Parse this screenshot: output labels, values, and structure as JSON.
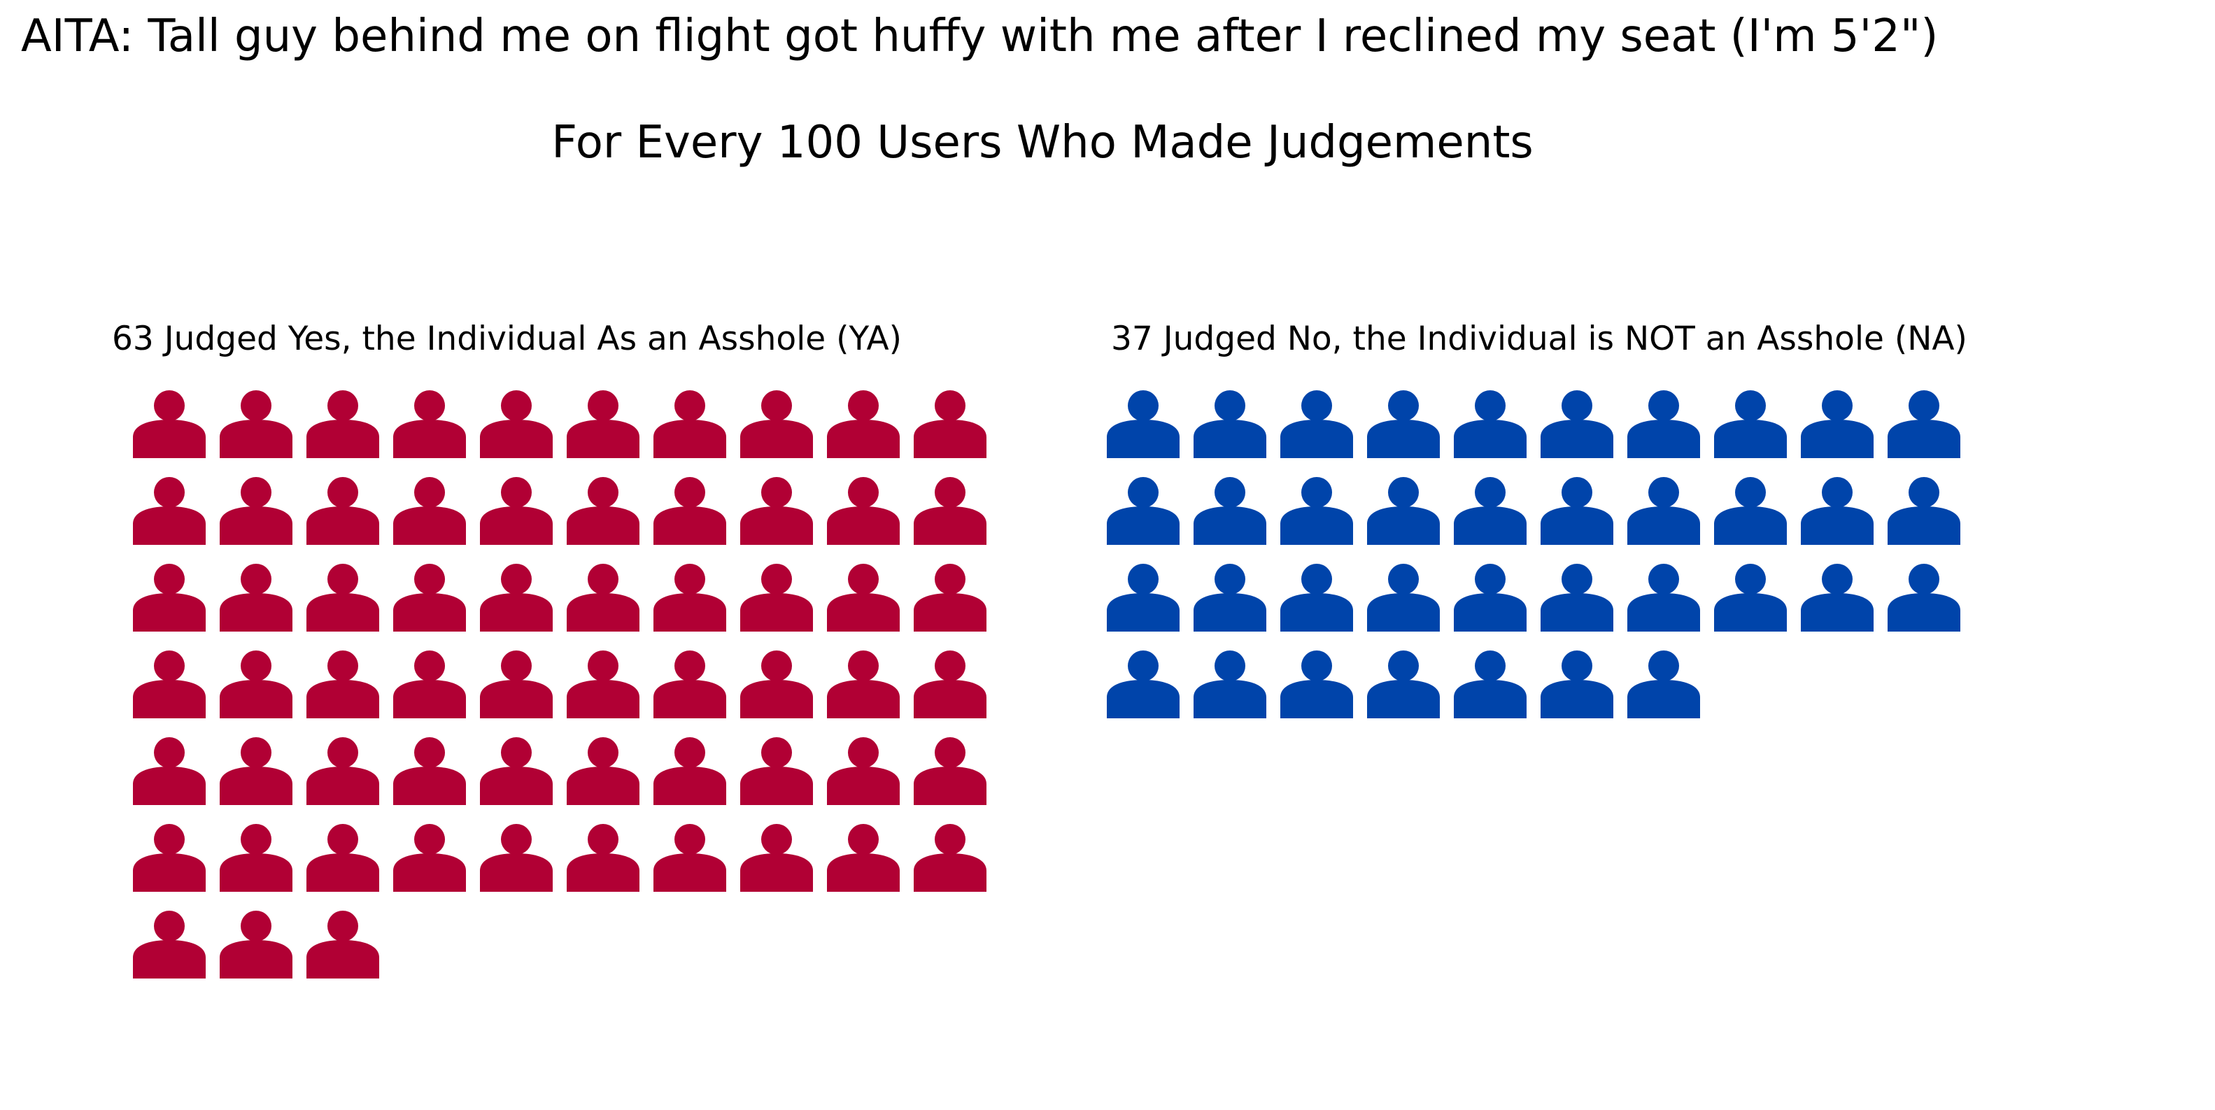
{
  "title": "AITA: Tall guy behind me on flight got huffy with me after I reclined my seat (I'm 5'2\")",
  "subtitle": "For Every 100 Users Who Made Judgements",
  "colors": {
    "ya": "#b10034",
    "na": "#0044aa"
  },
  "icon": "person-icon",
  "chart_data": [
    {
      "type": "waffle",
      "title": "63 Judged Yes, the Individual As an Asshole (YA)",
      "category": "YA",
      "value": 63,
      "columns": 10,
      "color": "#b10034"
    },
    {
      "type": "waffle",
      "title": "37 Judged No, the Individual is NOT an Asshole (NA)",
      "category": "NA",
      "value": 37,
      "columns": 10,
      "color": "#0044aa"
    }
  ]
}
